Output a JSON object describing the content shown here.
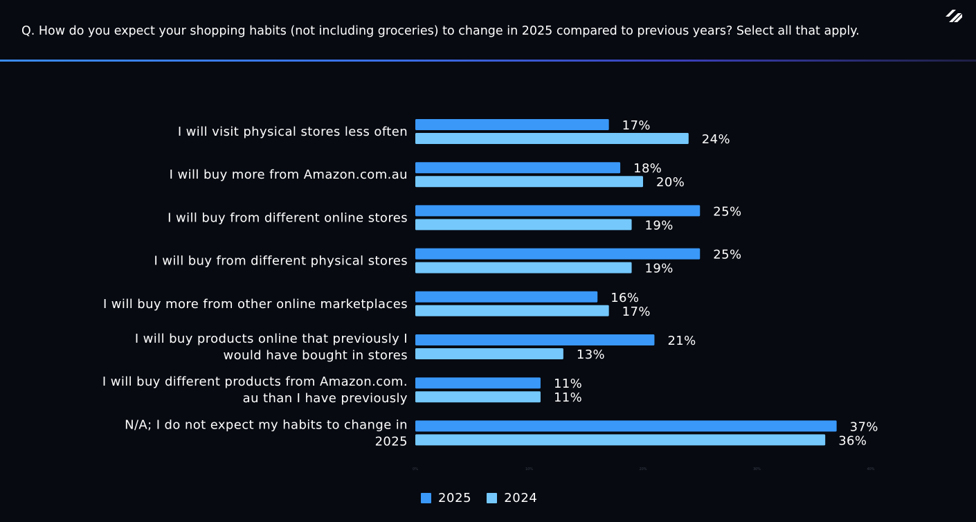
{
  "header": {
    "question": "Q. How do you expect your shopping habits (not including groceries) to change in 2025 compared to previous years? Select all that apply.",
    "logo_icon": "slash-logo-icon"
  },
  "colors": {
    "background": "#070a11",
    "series_2025": "#3a98f8",
    "series_2024": "#74c8fc",
    "text": "#ffffff",
    "logo": "#ffffff"
  },
  "chart_data": {
    "type": "bar",
    "orientation": "horizontal",
    "title": "",
    "xlabel": "",
    "ylabel": "",
    "xlim": [
      0,
      40
    ],
    "x_ticks": [
      "0%",
      "10%",
      "20%",
      "30%",
      "40%"
    ],
    "grid": false,
    "legend_position": "bottom-center",
    "value_suffix": "%",
    "categories": [
      [
        "I will visit physical stores less often"
      ],
      [
        "I will buy more from Amazon.com.au"
      ],
      [
        "I will buy from different online stores"
      ],
      [
        "I will buy from different physical stores"
      ],
      [
        "I will buy more from other online marketplaces"
      ],
      [
        "I will buy products online that previously I",
        "would have bought in stores"
      ],
      [
        "I will buy different products from Amazon.com.",
        "au than I have previously"
      ],
      [
        "N/A; I do not expect my habits to change in",
        "2025"
      ]
    ],
    "series": [
      {
        "name": "2025",
        "values": [
          17,
          18,
          25,
          25,
          16,
          21,
          11,
          37
        ]
      },
      {
        "name": "2024",
        "values": [
          24,
          20,
          19,
          19,
          17,
          13,
          11,
          36
        ]
      }
    ]
  }
}
